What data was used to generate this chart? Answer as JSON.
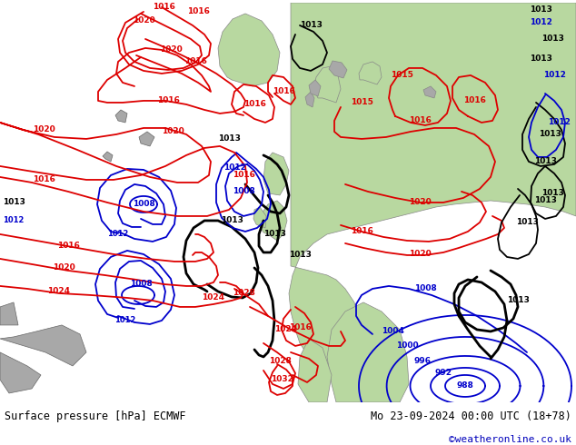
{
  "title_left": "Surface pressure [hPa] ECMWF",
  "title_right": "Mo 23-09-2024 00:00 UTC (18+78)",
  "credit": "©weatheronline.co.uk",
  "credit_color": "#0000bb",
  "bg_color": "#d8d8d8",
  "land_color": "#b8d8a0",
  "gray_land_color": "#a8a8a8",
  "sea_color": "#d8d8d8",
  "isobar_black": "#000000",
  "isobar_red": "#dd0000",
  "isobar_blue": "#0000cc",
  "lw_main": 1.3,
  "lw_thick": 2.0,
  "label_fs": 6.5,
  "footer_fs": 8.5,
  "credit_fs": 8.0,
  "figw": 6.34,
  "figh": 4.9,
  "dpi": 100
}
